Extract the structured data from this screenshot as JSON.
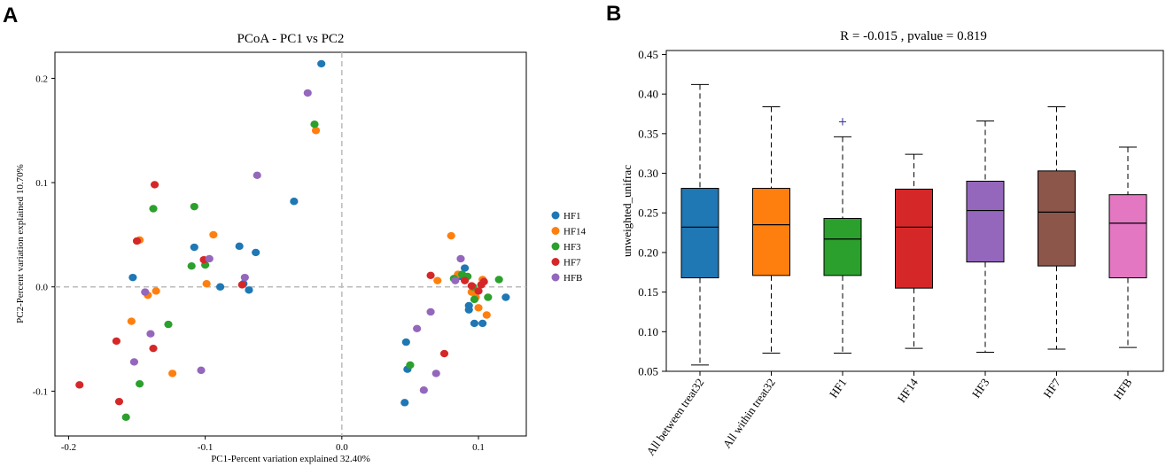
{
  "panel_a_letter": "A",
  "panel_b_letter": "B",
  "chart_data": [
    {
      "type": "scatter",
      "title": "PCoA - PC1 vs PC2",
      "xlabel": "PC1-Percent variation explained 32.40%",
      "ylabel": "PC2-Percent variation explained 10.70%",
      "xlim": [
        -0.21,
        0.135
      ],
      "ylim": [
        -0.143,
        0.225
      ],
      "xticks": [
        -0.2,
        -0.1,
        0.0,
        0.1
      ],
      "yticks": [
        -0.1,
        0.0,
        0.1,
        0.2
      ],
      "xtick_labels": [
        "-0.2",
        "-0.1",
        "0.0",
        "0.1"
      ],
      "ytick_labels": [
        "-0.1",
        "0.0",
        "0.1",
        "0.2"
      ],
      "reference_lines": {
        "x": 0,
        "y": 0
      },
      "legend_position": "right",
      "series": [
        {
          "name": "HF1",
          "color": "#1f77b4",
          "points": [
            [
              -0.015,
              0.214
            ],
            [
              -0.035,
              0.082
            ],
            [
              -0.153,
              0.009
            ],
            [
              -0.108,
              0.038
            ],
            [
              -0.075,
              0.039
            ],
            [
              -0.063,
              0.033
            ],
            [
              -0.072,
              0.003
            ],
            [
              -0.068,
              -0.003
            ],
            [
              -0.089,
              0.0
            ],
            [
              0.047,
              -0.053
            ],
            [
              0.048,
              -0.079
            ],
            [
              0.046,
              -0.111
            ],
            [
              0.097,
              -0.035
            ],
            [
              0.103,
              -0.035
            ],
            [
              0.093,
              -0.018
            ],
            [
              0.12,
              -0.01
            ],
            [
              0.09,
              0.018
            ],
            [
              0.093,
              -0.022
            ],
            [
              0.087,
              0.01
            ]
          ]
        },
        {
          "name": "HF14",
          "color": "#ff7f0e",
          "points": [
            [
              -0.019,
              0.15
            ],
            [
              -0.148,
              0.045
            ],
            [
              -0.142,
              -0.008
            ],
            [
              -0.136,
              -0.004
            ],
            [
              -0.154,
              -0.033
            ],
            [
              -0.124,
              -0.083
            ],
            [
              -0.094,
              0.05
            ],
            [
              -0.099,
              0.003
            ],
            [
              0.08,
              0.049
            ],
            [
              0.07,
              0.006
            ],
            [
              0.1,
              -0.02
            ],
            [
              0.106,
              -0.027
            ],
            [
              0.103,
              0.007
            ],
            [
              0.098,
              -0.01
            ],
            [
              0.085,
              0.012
            ],
            [
              0.095,
              -0.005
            ]
          ]
        },
        {
          "name": "HF3",
          "color": "#2ca02c",
          "points": [
            [
              -0.02,
              0.156
            ],
            [
              -0.138,
              0.075
            ],
            [
              -0.108,
              0.077
            ],
            [
              -0.11,
              0.02
            ],
            [
              -0.1,
              0.021
            ],
            [
              -0.127,
              -0.036
            ],
            [
              -0.148,
              -0.093
            ],
            [
              -0.158,
              -0.125
            ],
            [
              0.05,
              -0.075
            ],
            [
              0.115,
              0.007
            ],
            [
              0.107,
              -0.01
            ],
            [
              0.092,
              0.01
            ],
            [
              0.088,
              0.012
            ],
            [
              0.097,
              -0.012
            ],
            [
              0.082,
              0.008
            ],
            [
              0.096,
              0.0
            ]
          ]
        },
        {
          "name": "HF7",
          "color": "#d62728",
          "points": [
            [
              -0.137,
              0.098
            ],
            [
              -0.15,
              0.044
            ],
            [
              -0.101,
              0.026
            ],
            [
              -0.073,
              0.002
            ],
            [
              -0.192,
              -0.094
            ],
            [
              -0.165,
              -0.052
            ],
            [
              -0.163,
              -0.11
            ],
            [
              -0.138,
              -0.059
            ],
            [
              0.075,
              -0.064
            ],
            [
              0.065,
              0.011
            ],
            [
              0.104,
              0.005
            ],
            [
              0.1,
              -0.004
            ],
            [
              0.095,
              0.001
            ],
            [
              0.09,
              0.006
            ],
            [
              0.102,
              0.002
            ]
          ]
        },
        {
          "name": "HFB",
          "color": "#9467bd",
          "points": [
            [
              -0.025,
              0.186
            ],
            [
              -0.062,
              0.107
            ],
            [
              -0.097,
              0.027
            ],
            [
              -0.071,
              0.009
            ],
            [
              -0.144,
              -0.005
            ],
            [
              -0.14,
              -0.045
            ],
            [
              -0.152,
              -0.072
            ],
            [
              -0.103,
              -0.08
            ],
            [
              0.055,
              -0.04
            ],
            [
              0.065,
              -0.024
            ],
            [
              0.087,
              0.027
            ],
            [
              0.069,
              -0.083
            ],
            [
              0.06,
              -0.099
            ],
            [
              0.083,
              0.006
            ]
          ]
        }
      ]
    },
    {
      "type": "box",
      "title": "R = -0.015 , pvalue = 0.819",
      "xlabel": "",
      "ylabel": "unweighted_unifrac",
      "ylim": [
        0.05,
        0.455
      ],
      "yticks": [
        0.05,
        0.1,
        0.15,
        0.2,
        0.25,
        0.3,
        0.35,
        0.4,
        0.45
      ],
      "ytick_labels": [
        "0.05",
        "0.10",
        "0.15",
        "0.20",
        "0.25",
        "0.30",
        "0.35",
        "0.40",
        "0.45"
      ],
      "categories": [
        "All between treat32",
        "All within treat32",
        "HF1",
        "HF14",
        "HF3",
        "HF7",
        "HFB"
      ],
      "boxes": [
        {
          "category": "All between treat32",
          "color": "#1f77b4",
          "whisker_low": 0.058,
          "q1": 0.168,
          "median": 0.232,
          "q3": 0.281,
          "whisker_high": 0.412,
          "outliers": []
        },
        {
          "category": "All within treat32",
          "color": "#ff7f0e",
          "whisker_low": 0.073,
          "q1": 0.171,
          "median": 0.235,
          "q3": 0.281,
          "whisker_high": 0.384,
          "outliers": []
        },
        {
          "category": "HF1",
          "color": "#2ca02c",
          "whisker_low": 0.073,
          "q1": 0.171,
          "median": 0.217,
          "q3": 0.243,
          "whisker_high": 0.346,
          "outliers": [
            0.365
          ]
        },
        {
          "category": "HF14",
          "color": "#d62728",
          "whisker_low": 0.079,
          "q1": 0.155,
          "median": 0.232,
          "q3": 0.28,
          "whisker_high": 0.324,
          "outliers": []
        },
        {
          "category": "HF3",
          "color": "#9467bd",
          "whisker_low": 0.074,
          "q1": 0.188,
          "median": 0.253,
          "q3": 0.29,
          "whisker_high": 0.366,
          "outliers": []
        },
        {
          "category": "HF7",
          "color": "#8c564b",
          "whisker_low": 0.078,
          "q1": 0.183,
          "median": 0.251,
          "q3": 0.303,
          "whisker_high": 0.384,
          "outliers": []
        },
        {
          "category": "HFB",
          "color": "#e377c2",
          "whisker_low": 0.08,
          "q1": 0.168,
          "median": 0.237,
          "q3": 0.273,
          "whisker_high": 0.333,
          "outliers": []
        }
      ]
    }
  ]
}
